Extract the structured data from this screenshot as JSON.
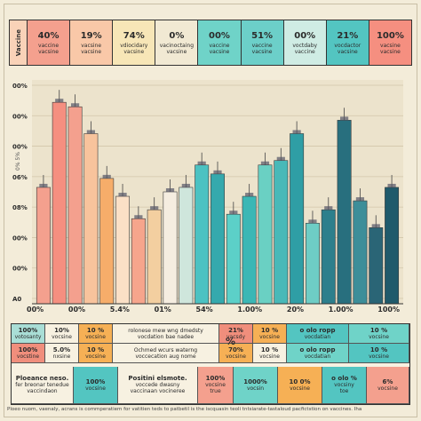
{
  "header": {
    "side_label": "Vaccine",
    "cells": [
      {
        "pct": "40%",
        "label": "vaccine\nvacsine",
        "color": "#f4a08e"
      },
      {
        "pct": "19%",
        "label": "vacsine\nvacsine",
        "color": "#f9c8a8"
      },
      {
        "pct": "74%",
        "label": "vdiocidary\nvacsine",
        "color": "#f7e6b7"
      },
      {
        "pct": "0%",
        "label": "vacinoctaing\nvacsine",
        "color": "#f1e9d3"
      },
      {
        "pct": "00%",
        "label": "vaccine\nvacsine",
        "color": "#6fd3c8"
      },
      {
        "pct": "51%",
        "label": "vaccine\nvacsine",
        "color": "#6ccfc9"
      },
      {
        "pct": "00%",
        "label": "voctdaby\nvaccine",
        "color": "#cfece4"
      },
      {
        "pct": "21%",
        "label": "vocdactor\nvacsine",
        "color": "#53c5c1"
      },
      {
        "pct": "100%",
        "label": "vacsine\nvacsine",
        "color": "#f58f80"
      }
    ]
  },
  "chart_data": {
    "type": "bar",
    "title": "",
    "ylabel": "",
    "ylim": [
      0,
      100
    ],
    "y_ticks": [
      "00%",
      "00%",
      "00%",
      "06%",
      "08%",
      "00%",
      "00%",
      "A0"
    ],
    "y_mid_label": "0% 5%",
    "x_ticks": [
      "00%",
      "00%",
      "5.4%",
      "01%",
      "54%",
      "1.00%",
      "20%",
      "1.00%",
      "100%"
    ],
    "bars": [
      {
        "value": 52,
        "color": "#f4a08e"
      },
      {
        "value": 90,
        "color": "#f58f80"
      },
      {
        "value": 88,
        "color": "#f4a08e"
      },
      {
        "value": 76,
        "color": "#f8c39c"
      },
      {
        "value": 56,
        "color": "#f6ad6a"
      },
      {
        "value": 48,
        "color": "#fbe0c6"
      },
      {
        "value": 38,
        "color": "#f6a58c"
      },
      {
        "value": 42,
        "color": "#f3cfa0"
      },
      {
        "value": 50,
        "color": "#f5ede0"
      },
      {
        "value": 52,
        "color": "#cfe6dc"
      },
      {
        "value": 62,
        "color": "#4cc2c2"
      },
      {
        "value": 58,
        "color": "#35a9ad"
      },
      {
        "value": 40,
        "color": "#5cd0c8"
      },
      {
        "value": 48,
        "color": "#3bb7b5"
      },
      {
        "value": 62,
        "color": "#6ad0c3"
      },
      {
        "value": 64,
        "color": "#48b9b8"
      },
      {
        "value": 76,
        "color": "#2f9ea5"
      },
      {
        "value": 36,
        "color": "#6ecdc5"
      },
      {
        "value": 42,
        "color": "#2d7f8c"
      },
      {
        "value": 82,
        "color": "#286f7e"
      },
      {
        "value": 46,
        "color": "#3d8e99"
      },
      {
        "value": 34,
        "color": "#2a6576"
      },
      {
        "value": 52,
        "color": "#1f5a6b"
      }
    ]
  },
  "table": {
    "top_row": [
      {
        "bold": "100%",
        "text": "votosanty",
        "color": "#a9ded6"
      },
      {
        "bold": "10%",
        "text": "vocsine",
        "color": "#f7f1e1"
      },
      {
        "bold": "10 %",
        "text": "vocsine",
        "color": "#f6b055"
      },
      {
        "bold": "",
        "text": "rolonese mew wng dmedsty\nvocdation bae nadee",
        "color": "#f7f1e1"
      },
      {
        "bold": "21%",
        "text": "vacsdy",
        "color": "#f08e7c"
      },
      {
        "bold": "10 %",
        "text": "vocsine",
        "color": "#f6b055"
      },
      {
        "bold": "o olo ropp",
        "text": "vocdatian",
        "color": "#53c5c1"
      },
      {
        "bold": "10 %",
        "text": "vocsine",
        "color": "#6fd3c8"
      }
    ],
    "mid_row": [
      {
        "bold": "100%",
        "text": "vocstine",
        "color": "#f08e7c"
      },
      {
        "bold": "5.0%",
        "text": "nxsine",
        "color": "#f7f1e1"
      },
      {
        "bold": "10 %",
        "text": "vocsine",
        "color": "#f6b055"
      },
      {
        "bold": "",
        "text": "Ochmed wcurs waterng\nvoccecation aug nome",
        "color": "#f7f1e1"
      },
      {
        "bold": "70%",
        "text": "vocsine",
        "color": "#f6b055"
      },
      {
        "bold": "10 %",
        "text": "vocsine",
        "color": "#f7f1e1"
      },
      {
        "bold": "o olo ropp",
        "text": "vocdatian",
        "color": "#6fd3c8"
      },
      {
        "bold": "10 %",
        "text": "vocsine",
        "color": "#53c5c1"
      }
    ],
    "bottom_row": [
      {
        "bold": "Ploeance neso.",
        "text": "fer breonar tenedue\nvaccindaon",
        "color": "#f7f1e1"
      },
      {
        "bold": "100%",
        "text": "vocsine",
        "color": "#53c5c1"
      },
      {
        "bold": "Positini elsmote.",
        "text": "voccede dwasny\nvaccinaan vocineree",
        "color": "#f7f1e1"
      },
      {
        "bold": "100%",
        "text": "vocsine\ntrue",
        "color": "#f4a08e"
      },
      {
        "bold": "1000%",
        "text": "vocsin",
        "color": "#6fd3c8"
      },
      {
        "bold": "10 0%",
        "text": "vocsine",
        "color": "#f6b055"
      },
      {
        "bold": "o olo %",
        "text": "vocsiny\ntoe",
        "color": "#53c5c1"
      },
      {
        "bold": "6%",
        "text": "vocsine",
        "color": "#f4a08e"
      }
    ],
    "pct_mark": "%"
  },
  "footer": "Ploeo nuom, vaenaly, acrans is commperatiem for vatitien teds to patbetil is the iscquasin teoli tntsiarate-tastaloud pacfictstion on vaccines. Iha"
}
